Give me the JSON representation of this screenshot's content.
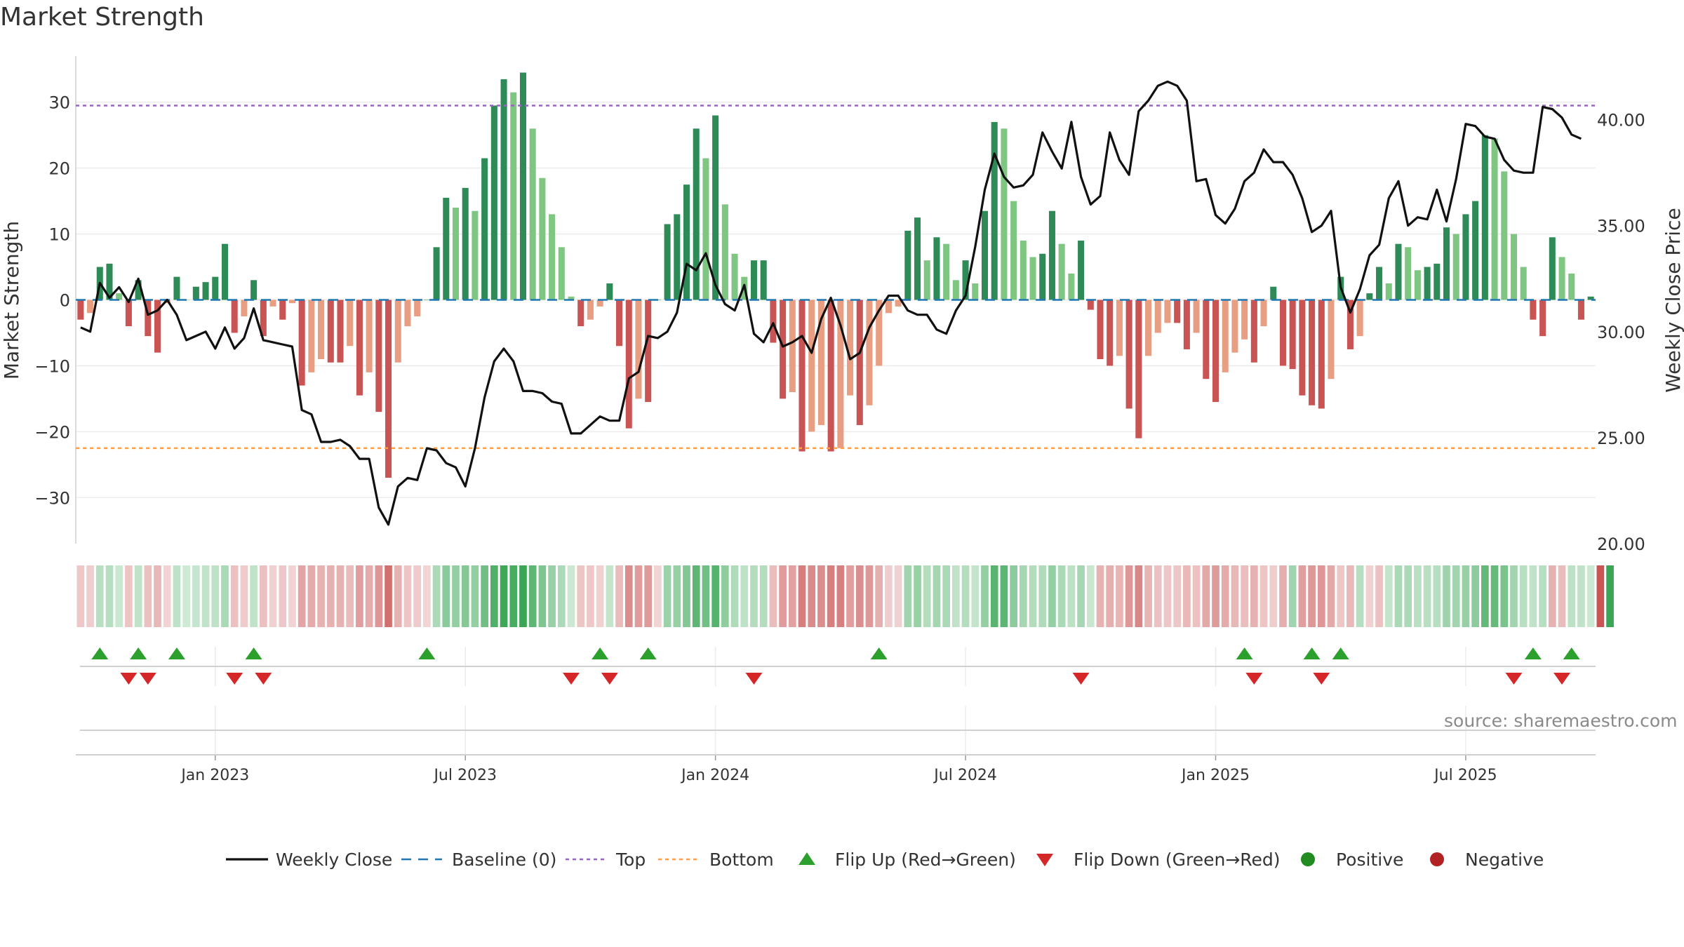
{
  "chart_data": {
    "type": "bar",
    "title": "Market Strength",
    "ylabel": "Market Strength",
    "y2label": "Weekly Close Price",
    "ylim": [
      -37,
      37
    ],
    "y2lim": [
      20,
      43
    ],
    "yticks": [
      -30,
      -20,
      -10,
      0,
      10,
      20,
      30
    ],
    "ytick_labels": [
      "−30",
      "−20",
      "−10",
      "0",
      "10",
      "20",
      "30"
    ],
    "y2ticks": [
      20,
      25,
      30,
      35,
      40
    ],
    "y2tick_labels": [
      "20.00",
      "25.00",
      "30.00",
      "35.00",
      "40.00"
    ],
    "xticks": [
      {
        "label": "Jan 2023",
        "week": 14.5
      },
      {
        "label": "Jul 2023",
        "week": 40.5
      },
      {
        "label": "Jan 2024",
        "week": 66.5
      },
      {
        "label": "Jul 2024",
        "week": 92.5
      },
      {
        "label": "Jan 2025",
        "week": 118.5
      },
      {
        "label": "Jul 2025",
        "week": 144.5
      }
    ],
    "top_level": 29.5,
    "bottom_level": -22.5,
    "baseline": 0,
    "strength": [
      -3,
      -2,
      5,
      5.5,
      1,
      -4,
      3,
      -5.5,
      -8,
      -0.5,
      3.5,
      0,
      2,
      2.7,
      3.5,
      8.5,
      -5,
      -2.5,
      3,
      -5.5,
      -1,
      -3,
      -0.5,
      -13,
      -11,
      -9,
      -9.5,
      -9.5,
      -7,
      -14.5,
      -11,
      -17,
      -27,
      -9.5,
      -4,
      -2.5,
      0,
      8,
      15.5,
      14,
      17,
      13.5,
      21.5,
      29.5,
      33.5,
      31.5,
      34.5,
      26,
      18.5,
      13,
      8,
      0.5,
      -4,
      -3,
      -1,
      2.5,
      -7,
      -19.5,
      -15,
      -15.5,
      0,
      11.5,
      13,
      17.5,
      26,
      21.5,
      28,
      14.5,
      7,
      3.5,
      6,
      6,
      -6.5,
      -15,
      -14,
      -23,
      -20,
      -19,
      -23,
      -22.5,
      -14.5,
      -19,
      -16,
      -10,
      -2,
      -1,
      10.5,
      12.5,
      6,
      9.5,
      8.5,
      3,
      6,
      2.5,
      13.5,
      27,
      26,
      15,
      9,
      6.5,
      7,
      13.5,
      8.5,
      4,
      9,
      -1.5,
      -9,
      -10,
      -8.5,
      -16.5,
      -21,
      -8.5,
      -5,
      -3.5,
      -3.5,
      -7.5,
      -5,
      -12,
      -15.5,
      -11,
      -8,
      -6,
      -9.5,
      -4,
      2,
      -10,
      -10.5,
      -14.5,
      -16,
      -16.5,
      -12,
      3.5,
      -7.5,
      -5.5,
      1,
      5,
      2.5,
      8.5,
      8,
      4.5,
      5,
      5.5,
      11,
      10,
      13,
      15,
      25,
      24.5,
      19.5,
      10,
      5,
      -3,
      -5.5,
      9.5,
      6.5,
      4,
      -3,
      0.5
    ],
    "weekly_close": [
      30.2,
      30,
      32.3,
      31.6,
      32.1,
      31.4,
      32.5,
      30.8,
      31,
      31.5,
      30.8,
      29.6,
      29.8,
      30,
      29.2,
      30.2,
      29.2,
      29.7,
      31.1,
      29.6,
      29.5,
      29.4,
      29.3,
      26.3,
      26.1,
      24.8,
      24.8,
      24.9,
      24.6,
      24,
      24,
      21.7,
      20.9,
      22.7,
      23.1,
      23,
      24.5,
      24.4,
      23.8,
      23.6,
      22.7,
      24.5,
      26.9,
      28.6,
      29.2,
      28.6,
      27.2,
      27.2,
      27.1,
      26.7,
      26.6,
      25.2,
      25.2,
      25.6,
      26,
      25.8,
      25.8,
      27.8,
      28.1,
      29.8,
      29.7,
      30,
      30.9,
      33.2,
      32.9,
      33.7,
      32.2,
      31.3,
      31,
      32.2,
      29.9,
      29.5,
      30.4,
      29.3,
      29.5,
      29.8,
      29,
      30.6,
      31.6,
      30.3,
      28.7,
      29,
      30.2,
      31,
      31.7,
      31.7,
      31,
      30.8,
      30.8,
      30.1,
      29.9,
      31,
      31.7,
      34,
      36.7,
      38.4,
      37.3,
      36.8,
      36.9,
      37.4,
      39.4,
      38.5,
      37.7,
      39.9,
      37.3,
      36,
      36.4,
      39.4,
      38.1,
      37.4,
      40.4,
      40.9,
      41.6,
      41.8,
      41.6,
      40.9,
      37.1,
      37.2,
      35.5,
      35.1,
      35.8,
      37.1,
      37.5,
      38.6,
      38,
      38,
      37.4,
      36.3,
      34.7,
      35,
      35.7,
      32.1,
      30.9,
      32,
      33.6,
      34.1,
      36.3,
      37.1,
      35,
      35.4,
      35.3,
      36.7,
      35.2,
      37.2,
      39.8,
      39.7,
      39.2,
      39.1,
      38.1,
      37.6,
      37.5,
      37.5,
      40.6,
      40.5,
      40.1,
      39.3,
      39.1
    ],
    "regime_strip": [
      -1,
      -1,
      1,
      1,
      1,
      -1,
      1,
      -1,
      -1,
      -1,
      1,
      1,
      1,
      1,
      1,
      1,
      -1,
      -1,
      1,
      -1,
      -1,
      -1,
      -1,
      -1,
      -1,
      -1,
      -1,
      -1,
      -1,
      -1,
      -1,
      -1,
      -1,
      -1,
      -1,
      -1,
      -1,
      1,
      1,
      1,
      1,
      1,
      1,
      1,
      1,
      1,
      1,
      1,
      1,
      1,
      1,
      1,
      -1,
      -1,
      -1,
      1,
      -1,
      -1,
      -1,
      -1,
      -1,
      1,
      1,
      1,
      1,
      1,
      1,
      1,
      1,
      1,
      1,
      1,
      -1,
      -1,
      -1,
      -1,
      -1,
      -1,
      -1,
      -1,
      -1,
      -1,
      -1,
      -1,
      -1,
      -1,
      1,
      1,
      1,
      1,
      1,
      1,
      1,
      1,
      1,
      1,
      1,
      1,
      1,
      1,
      1,
      1,
      1,
      1,
      1,
      1,
      -1,
      -1,
      -1,
      -1,
      -1,
      -1,
      -1,
      -1,
      -1,
      -1,
      -1,
      -1,
      -1,
      -1,
      -1,
      -1,
      -1,
      -1,
      -1,
      -1,
      1,
      -1,
      -1,
      -1,
      -1,
      -1,
      -1,
      1,
      -1,
      -1,
      1,
      1,
      1,
      1,
      1,
      1,
      1,
      1,
      1,
      1,
      1,
      1,
      1,
      1,
      1,
      1,
      1,
      -1,
      -1,
      1,
      1,
      1,
      -1,
      1
    ],
    "flip_up_weeks": [
      2,
      6,
      10,
      18,
      36,
      54,
      59,
      83,
      121,
      128,
      131,
      151,
      155
    ],
    "flip_down_weeks": [
      5,
      7,
      16,
      19,
      51,
      55,
      70,
      104,
      122,
      129,
      149,
      154
    ],
    "legend": [
      "Weekly Close",
      "Baseline (0)",
      "Top",
      "Bottom",
      "Flip Up (Red→Green)",
      "Flip Down (Green→Red)",
      "Positive",
      "Negative"
    ],
    "legend_placement": "bottom-center",
    "colors": {
      "pos_dark": "#2e8b57",
      "pos_light": "#80c683",
      "neg_dark": "#c95454",
      "neg_light": "#e89e82",
      "line": "#111111",
      "baseline": "#1f77b4",
      "top": "#9467bd",
      "bottom": "#ff9f4a",
      "flip_up": "#2ca02c",
      "flip_down": "#d62728",
      "positive_dot": "#228b22",
      "negative_dot": "#b22222"
    },
    "grid": true
  },
  "title": "Market Strength",
  "source": "source: sharemaestro.com"
}
